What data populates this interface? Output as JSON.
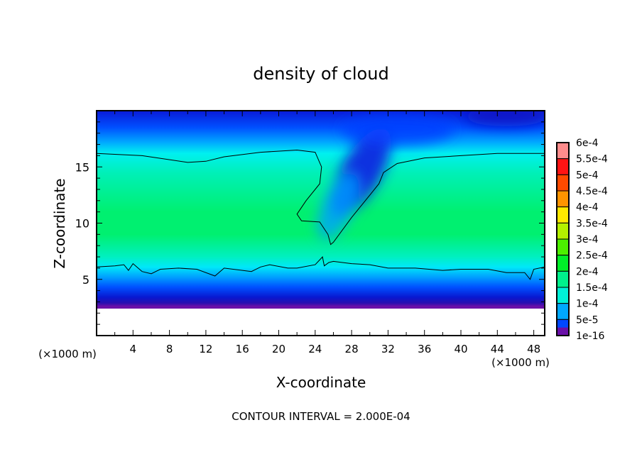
{
  "chart_data": {
    "type": "heatmap",
    "title": "density of cloud",
    "xlabel": "X-coordinate",
    "ylabel": "Z-coordinate",
    "x_unit": "(×1000 m)",
    "y_unit": "(×1000 m)",
    "footer": "CONTOUR INTERVAL = 2.000E-04",
    "xlim": [
      0,
      49.2
    ],
    "ylim": [
      0,
      20
    ],
    "x_ticks": [
      4,
      8,
      12,
      16,
      20,
      24,
      28,
      32,
      36,
      40,
      44,
      48
    ],
    "y_ticks": [
      5,
      10,
      15
    ],
    "colorbar": {
      "labels": [
        "6e-4",
        "5.5e-4",
        "5e-4",
        "4.5e-4",
        "4e-4",
        "3.5e-4",
        "3e-4",
        "2.5e-4",
        "2e-4",
        "1.5e-4",
        "1e-4",
        "5e-5",
        "1e-16"
      ],
      "colors": [
        "#ff8c8c",
        "#ff1414",
        "#ff4a00",
        "#ff9400",
        "#ffe800",
        "#b4f000",
        "#4cf000",
        "#00f028",
        "#00f08c",
        "#00f0d8",
        "#00a8ff",
        "#0048ff",
        "#1414c8"
      ]
    },
    "field_profile": [
      {
        "z": 20,
        "color": "#0a1ad8"
      },
      {
        "z": 18.5,
        "color": "#0050ff"
      },
      {
        "z": 17.2,
        "color": "#00a8ff"
      },
      {
        "z": 16.2,
        "color": "#00f0f0"
      },
      {
        "z": 14.5,
        "color": "#00f0b8"
      },
      {
        "z": 11,
        "color": "#00f070"
      },
      {
        "z": 9,
        "color": "#00f070"
      },
      {
        "z": 7,
        "color": "#00f0c0"
      },
      {
        "z": 6.1,
        "color": "#00e8f8"
      },
      {
        "z": 5.2,
        "color": "#00a0ff"
      },
      {
        "z": 4.3,
        "color": "#0050ff"
      },
      {
        "z": 3.4,
        "color": "#0818d0"
      },
      {
        "z": 2.9,
        "color": "#2810b0"
      },
      {
        "z": 2.6,
        "color": "#6a10a8"
      }
    ],
    "contour_lines": [
      {
        "level": "2e-4",
        "points": [
          [
            0,
            16.2
          ],
          [
            5,
            16
          ],
          [
            10,
            15.4
          ],
          [
            12,
            15.5
          ],
          [
            14,
            15.9
          ],
          [
            18,
            16.3
          ],
          [
            22,
            16.5
          ],
          [
            24,
            16.3
          ],
          [
            24.7,
            15
          ],
          [
            24.5,
            13.5
          ],
          [
            23,
            12
          ],
          [
            22,
            10.8
          ],
          [
            22.5,
            10.2
          ],
          [
            24.5,
            10.1
          ],
          [
            25.4,
            9
          ],
          [
            25.7,
            8.1
          ],
          [
            26,
            8.3
          ],
          [
            28,
            10.5
          ],
          [
            30,
            12.5
          ],
          [
            31,
            13.5
          ],
          [
            31.5,
            14.5
          ],
          [
            33,
            15.3
          ],
          [
            36,
            15.8
          ],
          [
            40,
            16
          ],
          [
            44,
            16.2
          ],
          [
            49.2,
            16.2
          ]
        ]
      },
      {
        "level": "2e-4",
        "points": [
          [
            0,
            6.1
          ],
          [
            2,
            6.2
          ],
          [
            3,
            6.3
          ],
          [
            3.5,
            5.8
          ],
          [
            4,
            6.4
          ],
          [
            5,
            5.7
          ],
          [
            6,
            5.5
          ],
          [
            7,
            5.9
          ],
          [
            9,
            6
          ],
          [
            11,
            5.9
          ],
          [
            13,
            5.3
          ],
          [
            14,
            6
          ],
          [
            17,
            5.7
          ],
          [
            18,
            6.1
          ],
          [
            19,
            6.3
          ],
          [
            21,
            6
          ],
          [
            22,
            6
          ],
          [
            24,
            6.3
          ],
          [
            24.8,
            7
          ],
          [
            25,
            6.2
          ],
          [
            25.5,
            6.5
          ],
          [
            26,
            6.6
          ],
          [
            28,
            6.4
          ],
          [
            30,
            6.3
          ],
          [
            32,
            6
          ],
          [
            35,
            6
          ],
          [
            38,
            5.8
          ],
          [
            40,
            5.9
          ],
          [
            43,
            5.9
          ],
          [
            45,
            5.6
          ],
          [
            47,
            5.6
          ],
          [
            47.6,
            5.0
          ],
          [
            48,
            5.9
          ],
          [
            49.2,
            6.1
          ]
        ]
      }
    ]
  }
}
